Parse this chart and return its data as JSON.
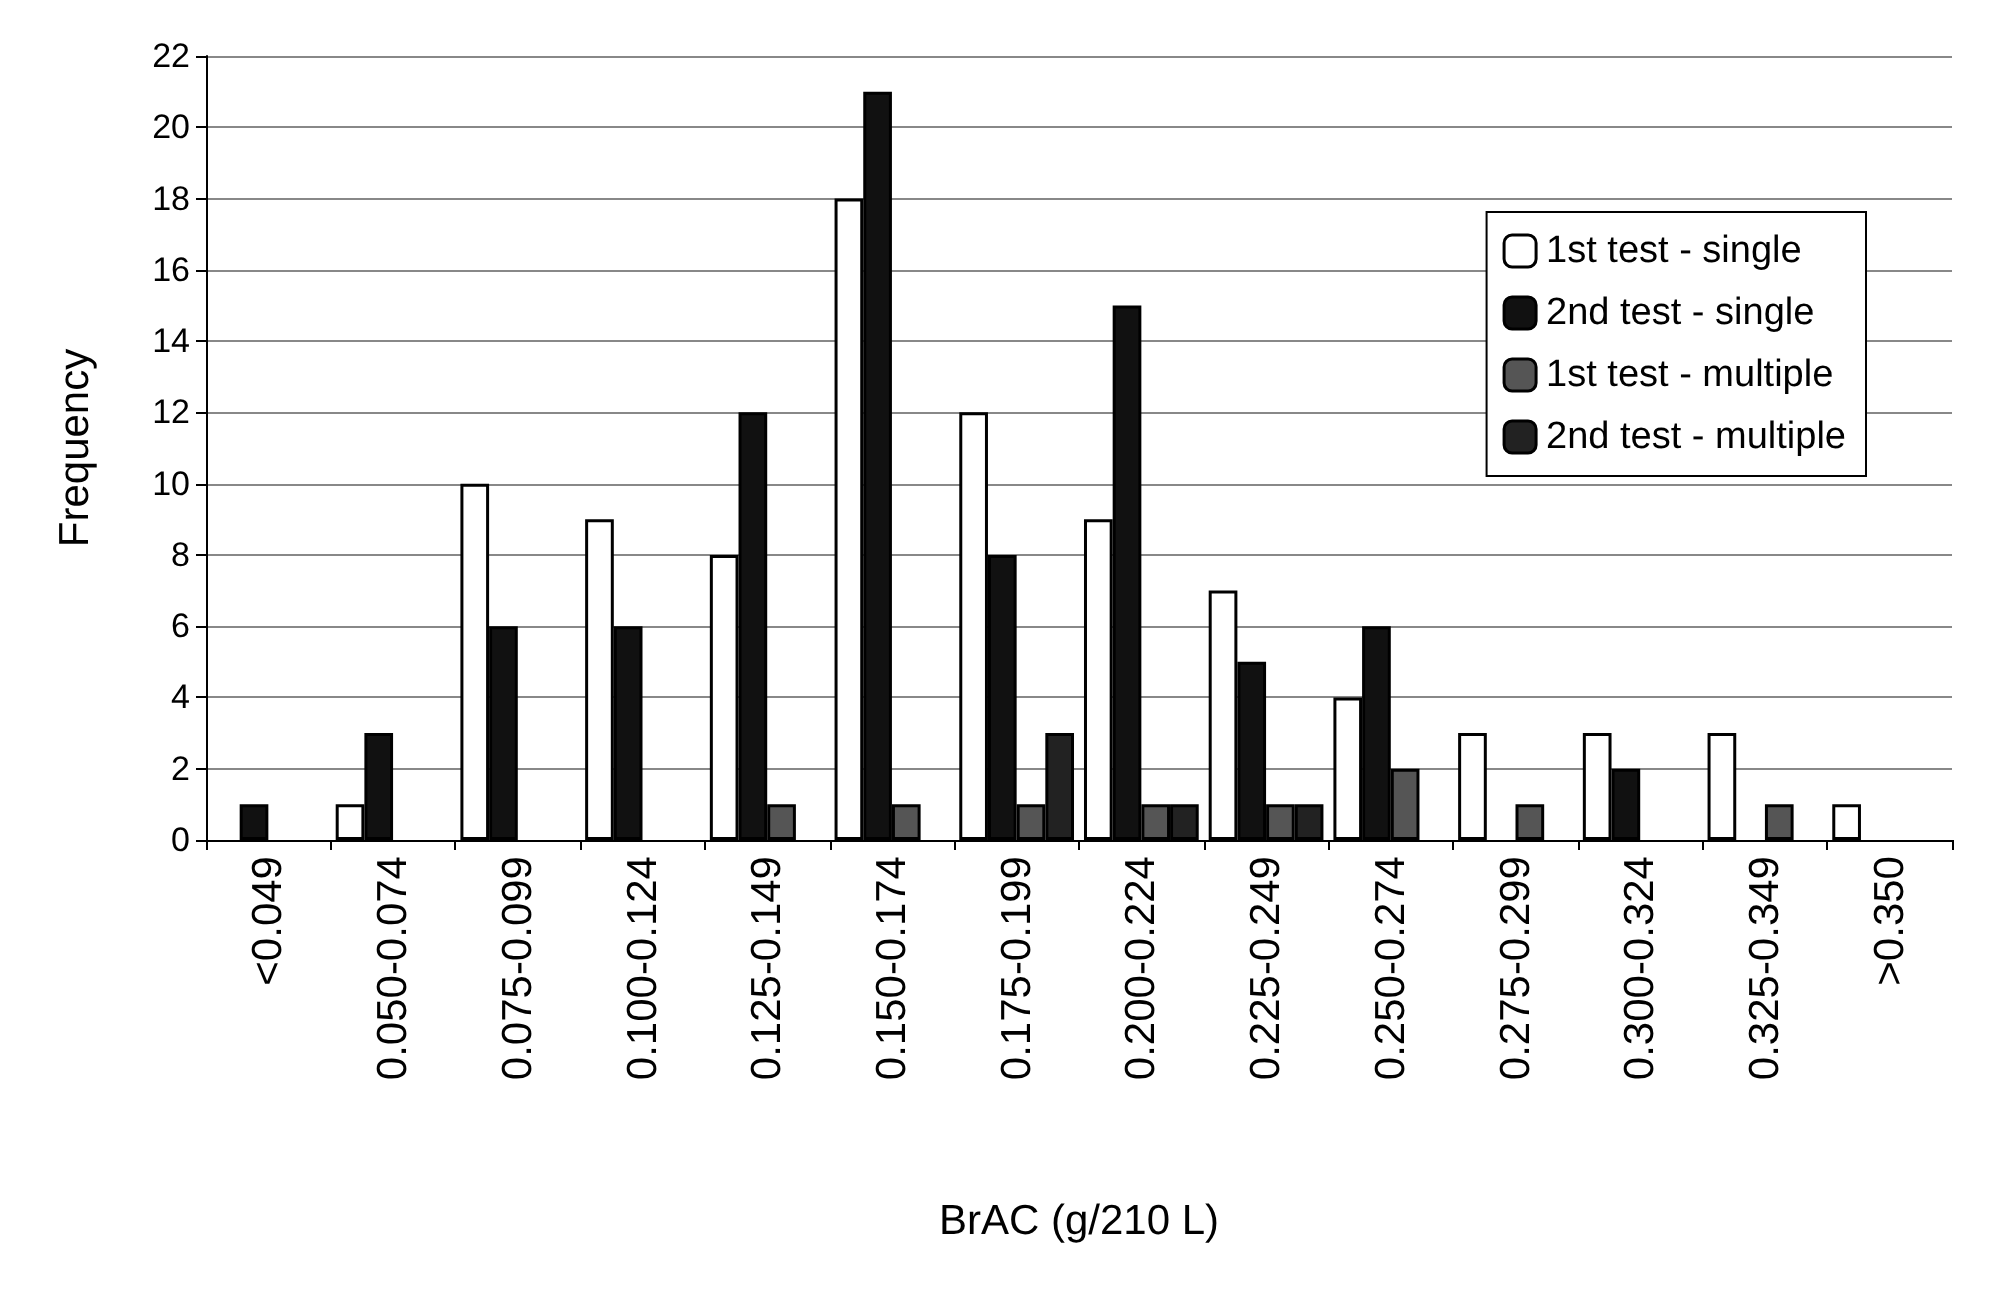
{
  "chart_data": {
    "type": "bar",
    "xlabel": "BrAC (g/210 L)",
    "ylabel": "Frequency",
    "categories": [
      "<0.049",
      "0.050-0.074",
      "0.075-0.099",
      "0.100-0.124",
      "0.125-0.149",
      "0.150-0.174",
      "0.175-0.199",
      "0.200-0.224",
      "0.225-0.249",
      "0.250-0.274",
      "0.275-0.299",
      "0.300-0.324",
      "0.325-0.349",
      ">0.350"
    ],
    "series": [
      {
        "name": "1st test - single",
        "color": "#ffffff",
        "values": [
          0,
          1,
          10,
          9,
          8,
          18,
          12,
          9,
          7,
          4,
          3,
          3,
          3,
          1
        ]
      },
      {
        "name": "2nd test - single",
        "color": "#111111",
        "values": [
          1,
          3,
          6,
          6,
          12,
          21,
          8,
          15,
          5,
          6,
          0,
          2,
          0,
          0
        ]
      },
      {
        "name": "1st test - multiple",
        "color": "#555555",
        "values": [
          0,
          0,
          0,
          0,
          1,
          1,
          1,
          1,
          1,
          2,
          1,
          0,
          1,
          0
        ]
      },
      {
        "name": "2nd test - multiple",
        "color": "#222222",
        "values": [
          0,
          0,
          0,
          0,
          0,
          0,
          3,
          1,
          1,
          0,
          0,
          0,
          0,
          0
        ]
      }
    ],
    "ylim": [
      0,
      22
    ],
    "yticks": [
      0,
      2,
      4,
      6,
      8,
      10,
      12,
      14,
      16,
      18,
      20,
      22
    ],
    "grid": "y",
    "legend": "top right"
  }
}
